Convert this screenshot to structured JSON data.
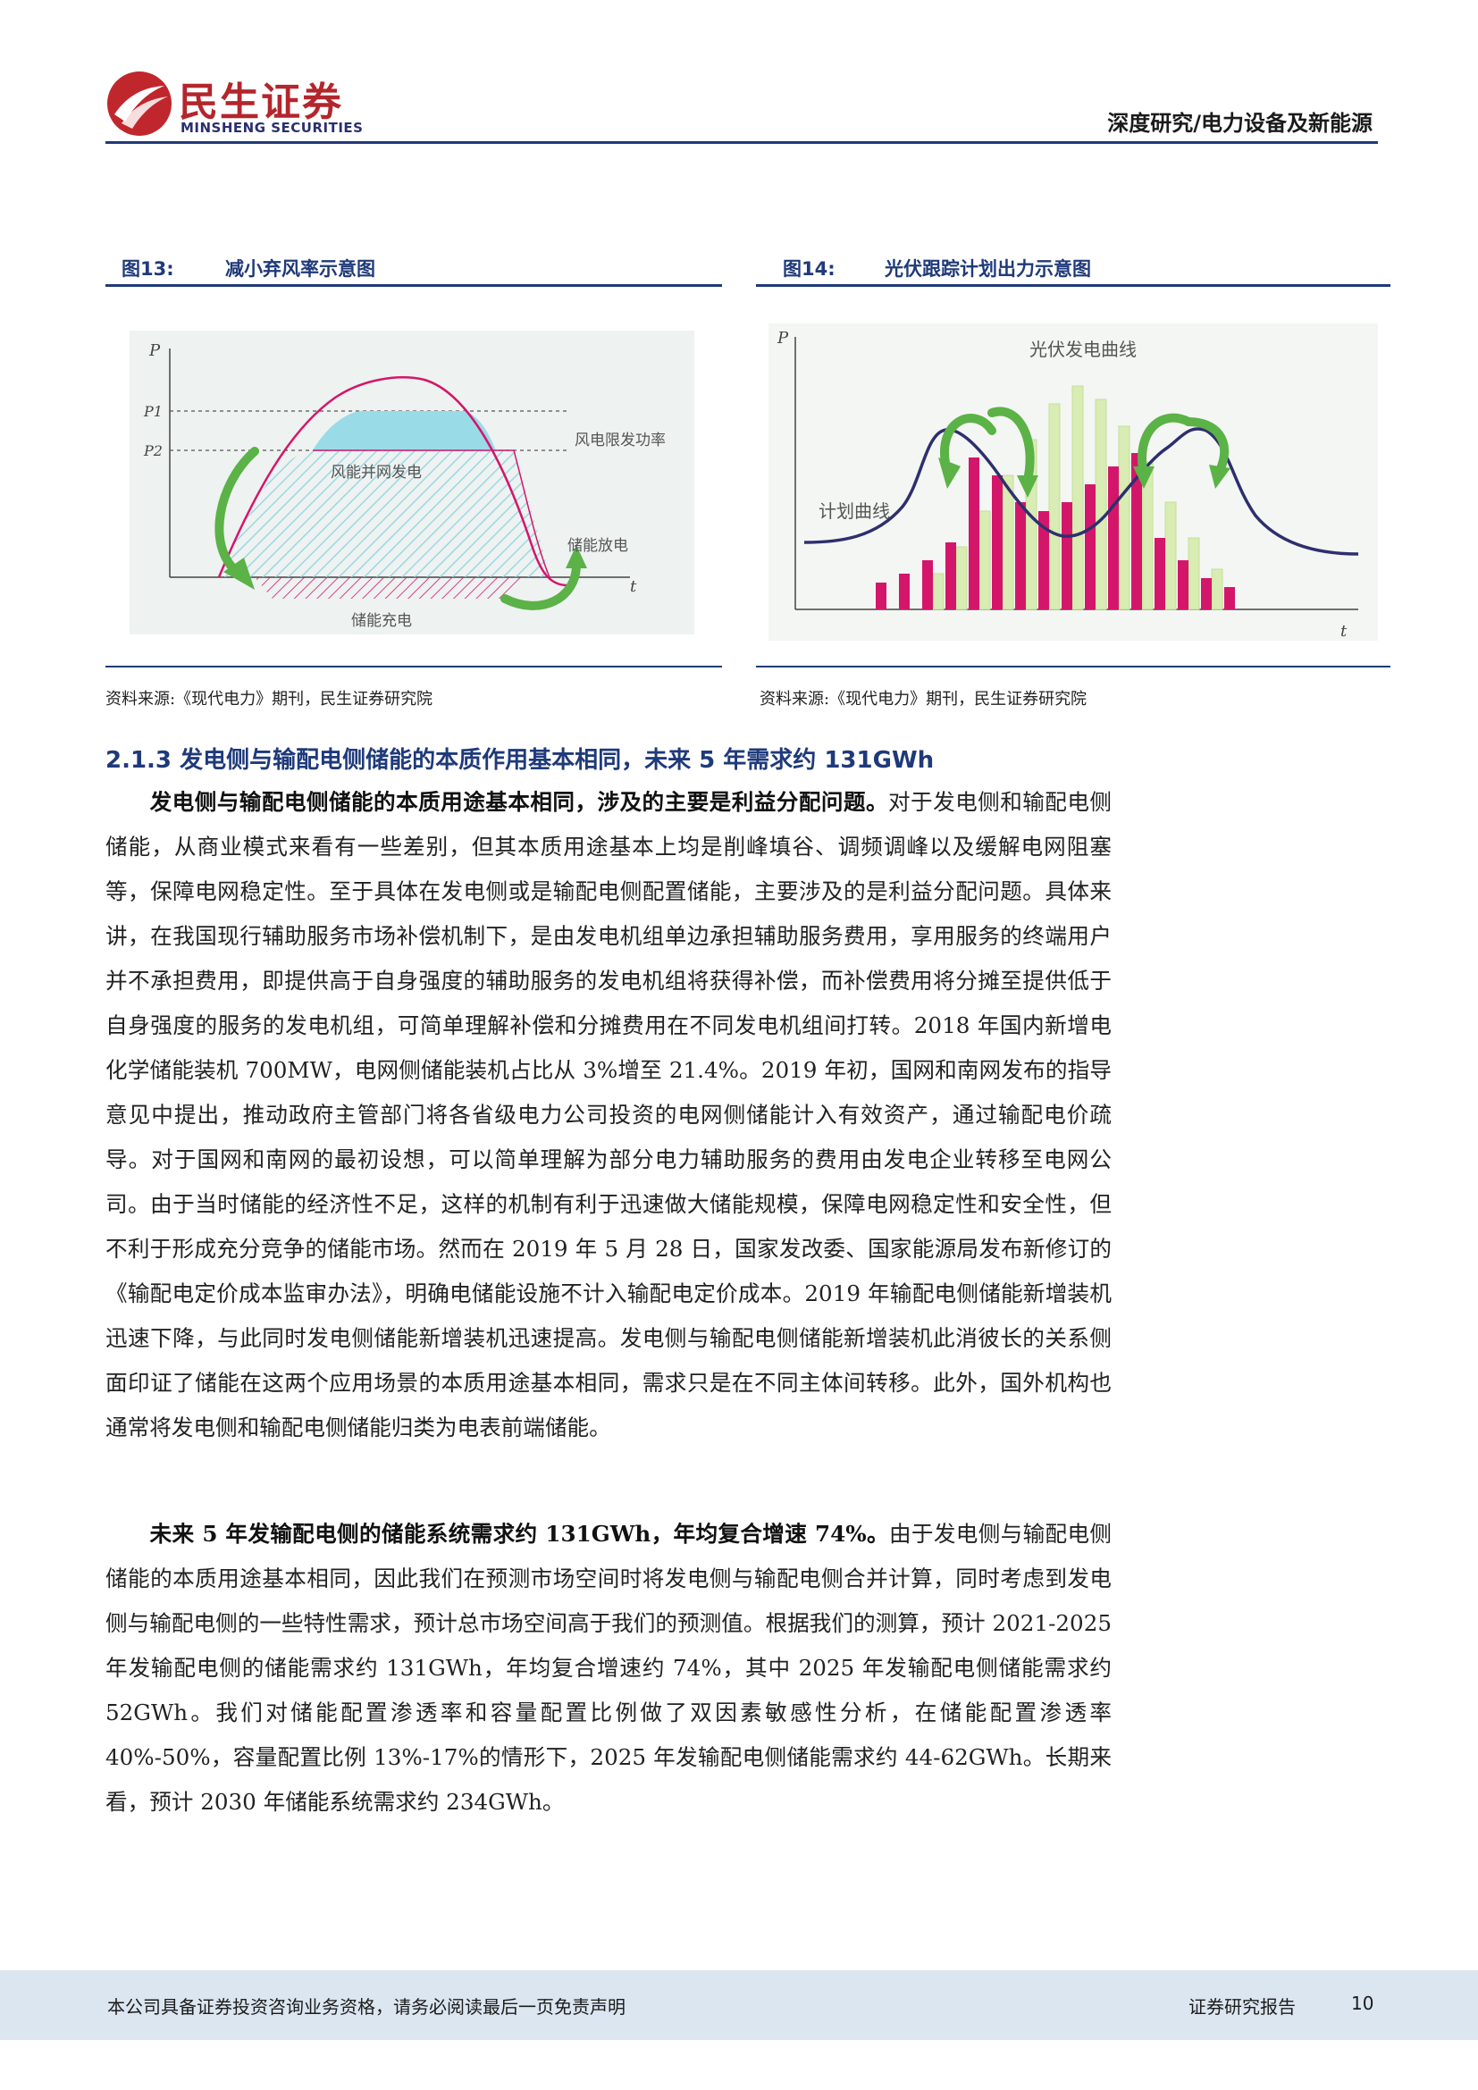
{
  "header": {
    "logo_name": "民生证券",
    "logo_en": "MINSHENG SECURITIES",
    "category": "深度研究/电力设备及新能源"
  },
  "figures": [
    {
      "number": "图13:",
      "title": "减小弃风率示意图",
      "source": "资料来源:《现代电力》期刊，民生证券研究院",
      "labels": {
        "p": "P",
        "p1": "P1",
        "p2": "P2",
        "t": "t",
        "limit": "风电限发功率",
        "grid": "风能并网发电",
        "discharge": "储能放电",
        "charge": "储能充电"
      }
    },
    {
      "number": "图14:",
      "title": "光伏跟踪计划出力示意图",
      "source": "资料来源:《现代电力》期刊，民生证券研究院",
      "labels": {
        "p": "P",
        "t": "t",
        "pv": "光伏发电曲线",
        "plan": "计划曲线"
      }
    }
  ],
  "section": {
    "heading": "2.1.3  发电侧与输配电侧储能的本质作用基本相同，未来 5 年需求约 131GWh"
  },
  "paragraphs": [
    {
      "lead": "发电侧与输配电侧储能的本质用途基本相同，涉及的主要是利益分配问题。",
      "text": "对于发电侧和输配电侧储能，从商业模式来看有一些差别，但其本质用途基本上均是削峰填谷、调频调峰以及缓解电网阻塞等，保障电网稳定性。至于具体在发电侧或是输配电侧配置储能，主要涉及的是利益分配问题。具体来讲，在我国现行辅助服务市场补偿机制下，是由发电机组单边承担辅助服务费用，享用服务的终端用户并不承担费用，即提供高于自身强度的辅助服务的发电机组将获得补偿，而补偿费用将分摊至提供低于自身强度的服务的发电机组，可简单理解补偿和分摊费用在不同发电机组间打转。2018 年国内新增电化学储能装机 700MW，电网侧储能装机占比从 3%增至 21.4%。2019 年初，国网和南网发布的指导意见中提出，推动政府主管部门将各省级电力公司投资的电网侧储能计入有效资产，通过输配电价疏导。对于国网和南网的最初设想，可以简单理解为部分电力辅助服务的费用由发电企业转移至电网公司。由于当时储能的经济性不足，这样的机制有利于迅速做大储能规模，保障电网稳定性和安全性，但不利于形成充分竞争的储能市场。然而在 2019 年 5 月 28 日，国家发改委、国家能源局发布新修订的《输配电定价成本监审办法》，明确电储能设施不计入输配电定价成本。2019 年输配电侧储能新增装机迅速下降，与此同时发电侧储能新增装机迅速提高。发电侧与输配电侧储能新增装机此消彼长的关系侧面印证了储能在这两个应用场景的本质用途基本相同，需求只是在不同主体间转移。此外，国外机构也通常将发电侧和输配电侧储能归类为电表前端储能。"
    },
    {
      "lead": "未来 5 年发输配电侧的储能系统需求约 131GWh，年均复合增速 74%。",
      "text": "由于发电侧与输配电侧储能的本质用途基本相同，因此我们在预测市场空间时将发电侧与输配电侧合并计算，同时考虑到发电侧与输配电侧的一些特性需求，预计总市场空间高于我们的预测值。根据我们的测算，预计 2021-2025 年发输配电侧的储能需求约 131GWh，年均复合增速约 74%，其中 2025 年发输配电侧储能需求约 52GWh。我们对储能配置渗透率和容量配置比例做了双因素敏感性分析，在储能配置渗透率 40%-50%，容量配置比例 13%-17%的情形下，2025 年发输配电侧储能需求约 44-62GWh。长期来看，预计 2030 年储能系统需求约 234GWh。"
    }
  ],
  "footer": {
    "disclaimer": "本公司具备证券投资咨询业务资格，请务必阅读最后一页免责声明",
    "report_type": "证券研究报告",
    "page_number": "10"
  },
  "colors": {
    "brand_red": "#b3262c",
    "brand_blue": "#1f3a7a",
    "magenta": "#d4166a",
    "light_green": "#d8ecb4",
    "curve_navy": "#2e2f6e",
    "arrow_green": "#5bb246",
    "hatch_cyan": "#8fd8e6"
  }
}
